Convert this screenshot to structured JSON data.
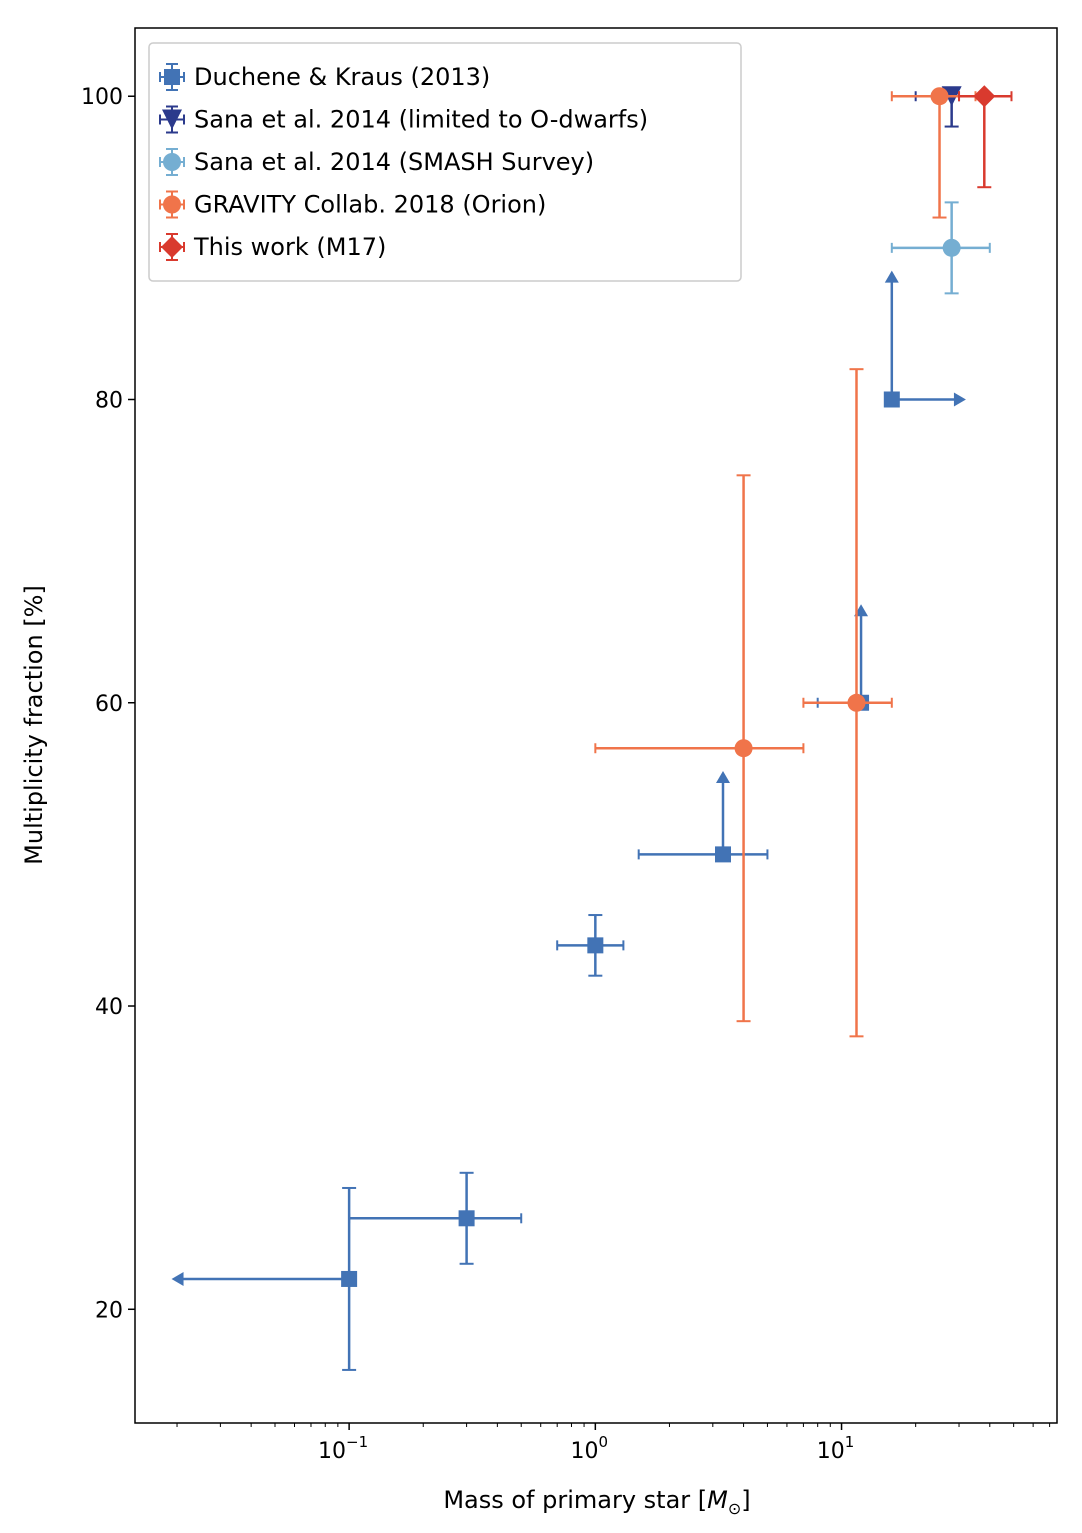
{
  "chart_data": {
    "type": "scatter",
    "xscale": "log",
    "xlim": [
      0.0135,
      75
    ],
    "ylim": [
      12.5,
      104.5
    ],
    "xlabel_main": "Mass of primary star [",
    "xlabel_symbol": "M",
    "xlabel_sub": "⊙",
    "xlabel_end": "]",
    "ylabel": "Multiplicity fraction [%]",
    "yticks": [
      {
        "value": 20,
        "label": "20"
      },
      {
        "value": 40,
        "label": "40"
      },
      {
        "value": 60,
        "label": "60"
      },
      {
        "value": 80,
        "label": "80"
      },
      {
        "value": 100,
        "label": "100"
      }
    ],
    "xticks": [
      {
        "value": 0.1,
        "base": "10",
        "exp": "−1"
      },
      {
        "value": 1,
        "base": "10",
        "exp": "0"
      },
      {
        "value": 10,
        "base": "10",
        "exp": "1"
      }
    ],
    "legend_position": "upper-left",
    "series": [
      {
        "name": "Duchene & Kraus (2013)",
        "color": "#4273b5",
        "marker": "square",
        "points": [
          {
            "x": 0.1,
            "y": 22,
            "xerr": [
              0.1,
              0.1
            ],
            "yerr": [
              16,
              28
            ],
            "arrow_left": 0.019
          },
          {
            "x": 0.3,
            "y": 26,
            "xerr": [
              0.1,
              0.5
            ],
            "yerr": [
              23,
              29
            ]
          },
          {
            "x": 1.0,
            "y": 44,
            "xerr": [
              0.7,
              1.3
            ],
            "yerr": [
              42,
              46
            ]
          },
          {
            "x": 3.3,
            "y": 50,
            "xerr": [
              1.5,
              5.0
            ],
            "yerr": [
              50,
              50
            ],
            "arrow_up": 55.5
          },
          {
            "x": 12.0,
            "y": 60,
            "xerr": [
              8.0,
              12.0
            ],
            "yerr": [
              60,
              60
            ],
            "arrow_up": 66.5
          },
          {
            "x": 16.0,
            "y": 80,
            "xerr": [
              16.0,
              16.0
            ],
            "yerr": [
              80,
              80
            ],
            "arrow_up": 88.5,
            "arrow_right": 32
          }
        ]
      },
      {
        "name": "Sana et al. 2014 (limited to O-dwarfs)",
        "color": "#2b3a8c",
        "marker": "triangle-down",
        "points": [
          {
            "x": 28.0,
            "y": 100,
            "xerr": [
              20.0,
              30.0
            ],
            "yerr": [
              98,
              100
            ]
          }
        ]
      },
      {
        "name": "Sana et al. 2014 (SMASH Survey)",
        "color": "#75aed2",
        "marker": "circle",
        "points": [
          {
            "x": 28.0,
            "y": 90,
            "xerr": [
              16.0,
              40.0
            ],
            "yerr": [
              87,
              93
            ]
          }
        ]
      },
      {
        "name": "GRAVITY Collab. 2018 (Orion)",
        "color": "#f0744a",
        "marker": "circle",
        "points": [
          {
            "x": 4.0,
            "y": 57,
            "xerr": [
              1.0,
              7.0
            ],
            "yerr": [
              39,
              75
            ]
          },
          {
            "x": 11.5,
            "y": 60,
            "xerr": [
              7.0,
              16.0
            ],
            "yerr": [
              38,
              82
            ]
          },
          {
            "x": 25.0,
            "y": 100,
            "xerr": [
              16.0,
              35.0
            ],
            "yerr": [
              92,
              100
            ]
          }
        ]
      },
      {
        "name": "This work (M17)",
        "color": "#d93a2e",
        "marker": "diamond",
        "points": [
          {
            "x": 38.0,
            "y": 100,
            "xerr": [
              30.0,
              49.0
            ],
            "yerr": [
              94,
              100
            ]
          }
        ]
      }
    ]
  }
}
